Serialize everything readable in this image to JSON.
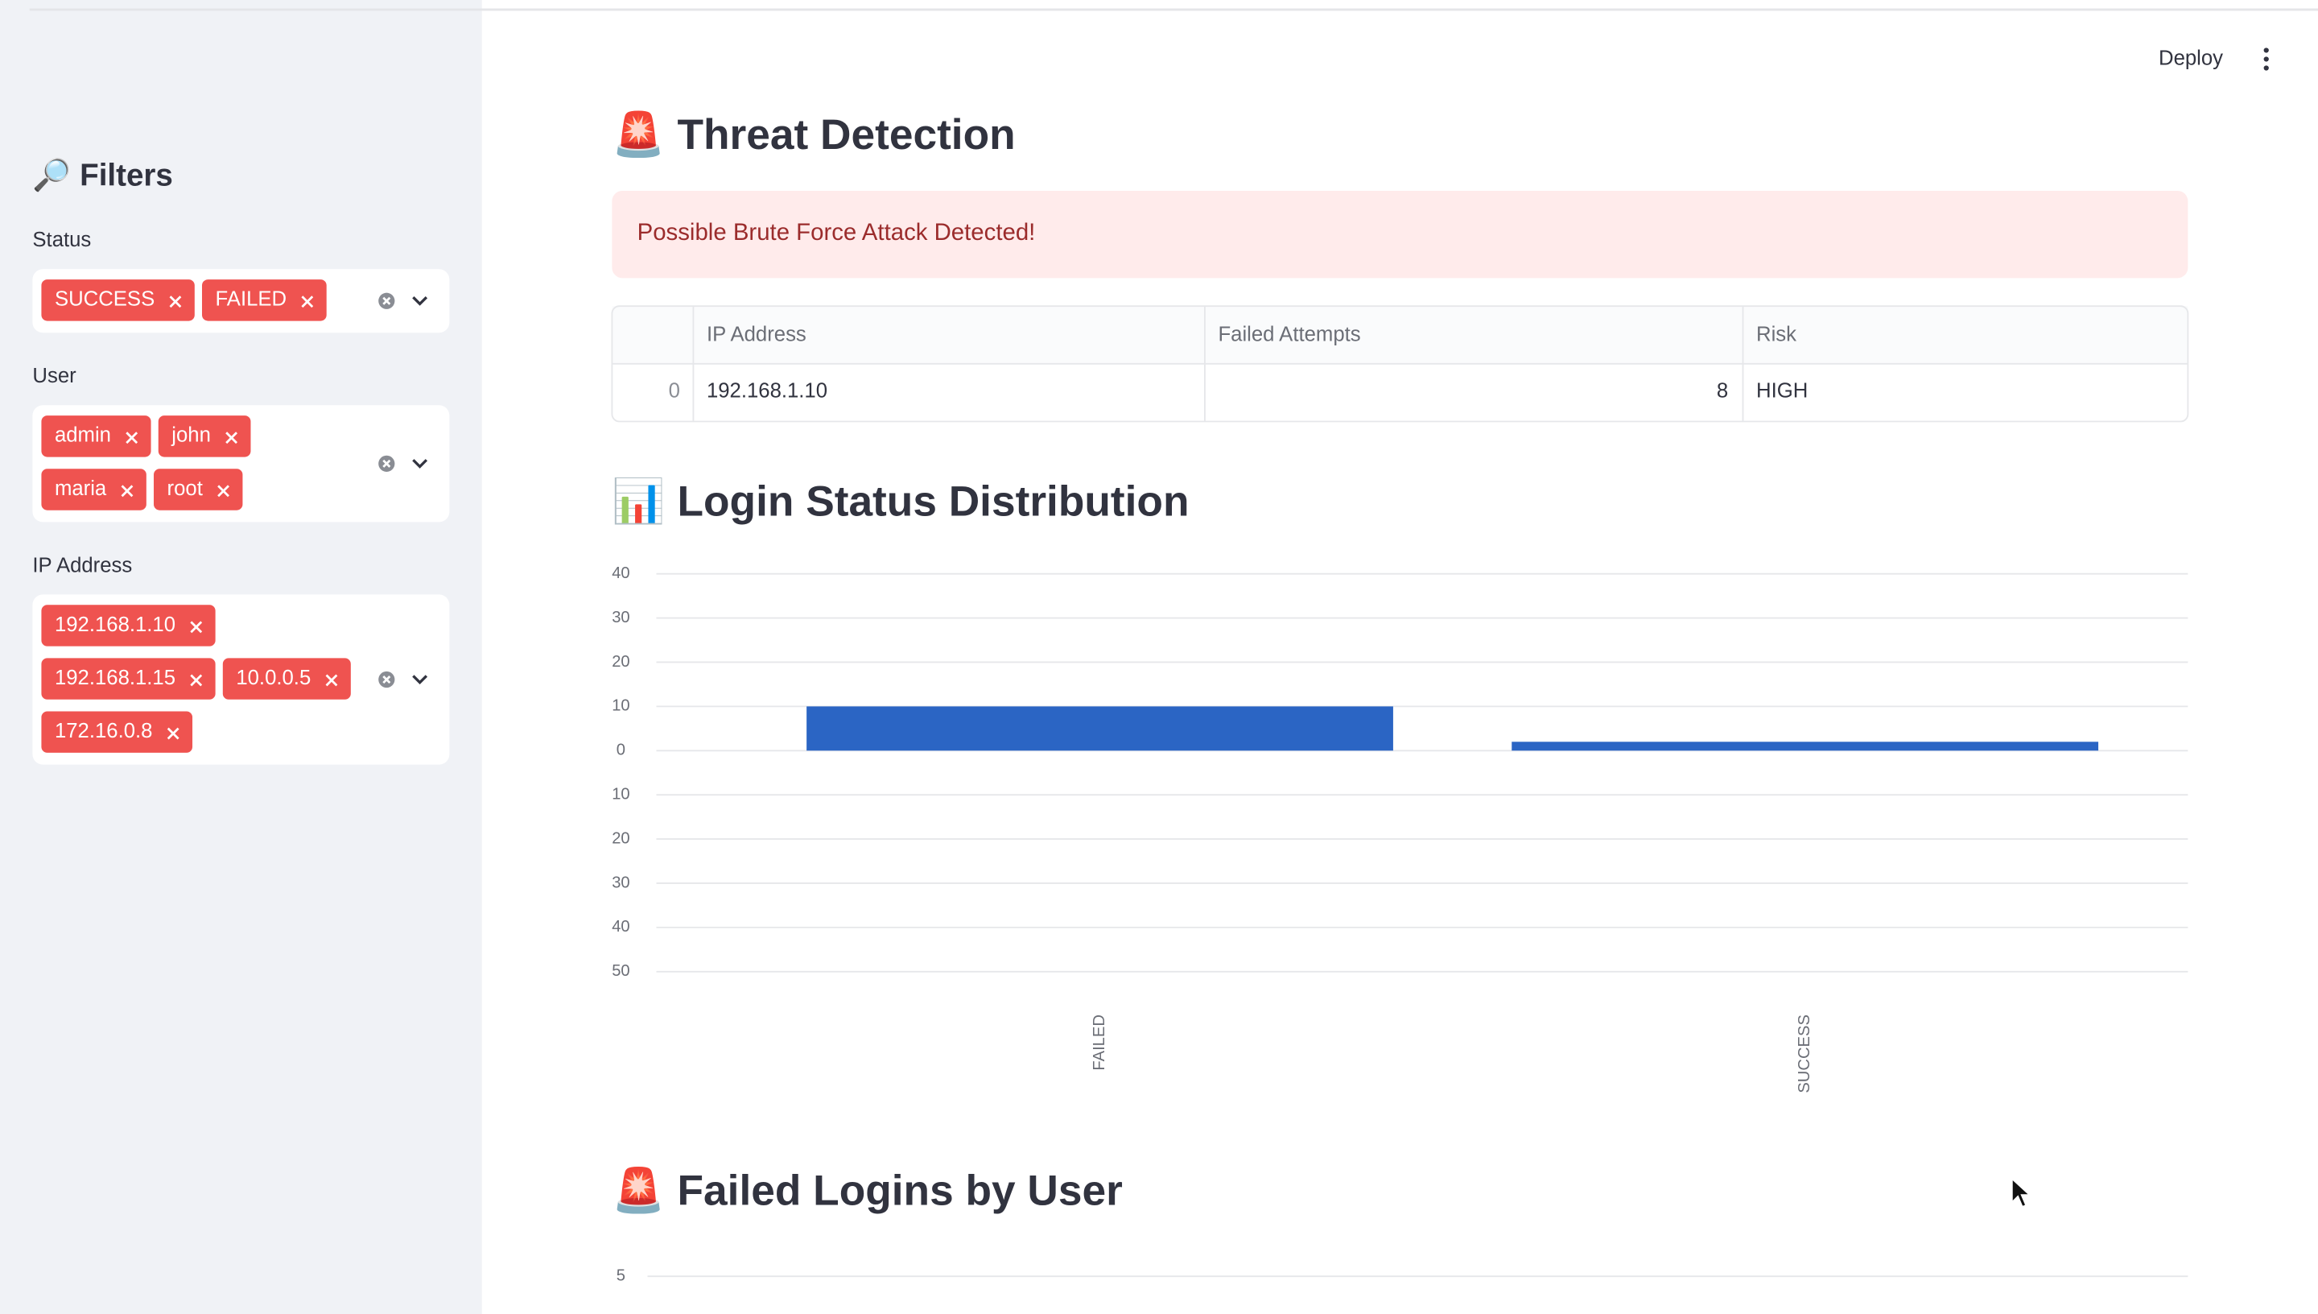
{
  "toolbar": {
    "deploy": "Deploy"
  },
  "sidebar": {
    "title": "🔎 Filters",
    "filters": [
      {
        "label": "Status",
        "selected": [
          "SUCCESS",
          "FAILED"
        ]
      },
      {
        "label": "User",
        "selected": [
          "admin",
          "john",
          "maria",
          "root"
        ]
      },
      {
        "label": "IP Address",
        "selected": [
          "192.168.1.10",
          "192.168.1.15",
          "10.0.0.5",
          "172.16.0.8"
        ]
      }
    ]
  },
  "threat": {
    "title": "🚨 Threat Detection",
    "alert": "Possible Brute Force Attack Detected!",
    "table": {
      "columns": [
        "IP Address",
        "Failed Attempts",
        "Risk"
      ],
      "rows": [
        {
          "index": 0,
          "cells": [
            "192.168.1.10",
            8,
            "HIGH"
          ]
        }
      ]
    }
  },
  "chart_data": [
    {
      "type": "bar",
      "title": "📊 Login Status Distribution",
      "categories": [
        "FAILED",
        "SUCCESS"
      ],
      "values": [
        10,
        2
      ],
      "color": "#2b65c4",
      "ylim": [
        -50,
        40
      ],
      "yticks": [
        40,
        30,
        20,
        10,
        0,
        {
          "value": -10,
          "label": "10"
        },
        {
          "value": -20,
          "label": "20"
        },
        {
          "value": -30,
          "label": "30"
        },
        {
          "value": -40,
          "label": "40"
        },
        {
          "value": -50,
          "label": "50"
        }
      ],
      "grid": true
    },
    {
      "type": "bar",
      "title": "🚨 Failed Logins by User",
      "ylim": [
        0,
        5
      ],
      "yticks": [
        5
      ],
      "grid": true
    }
  ]
}
